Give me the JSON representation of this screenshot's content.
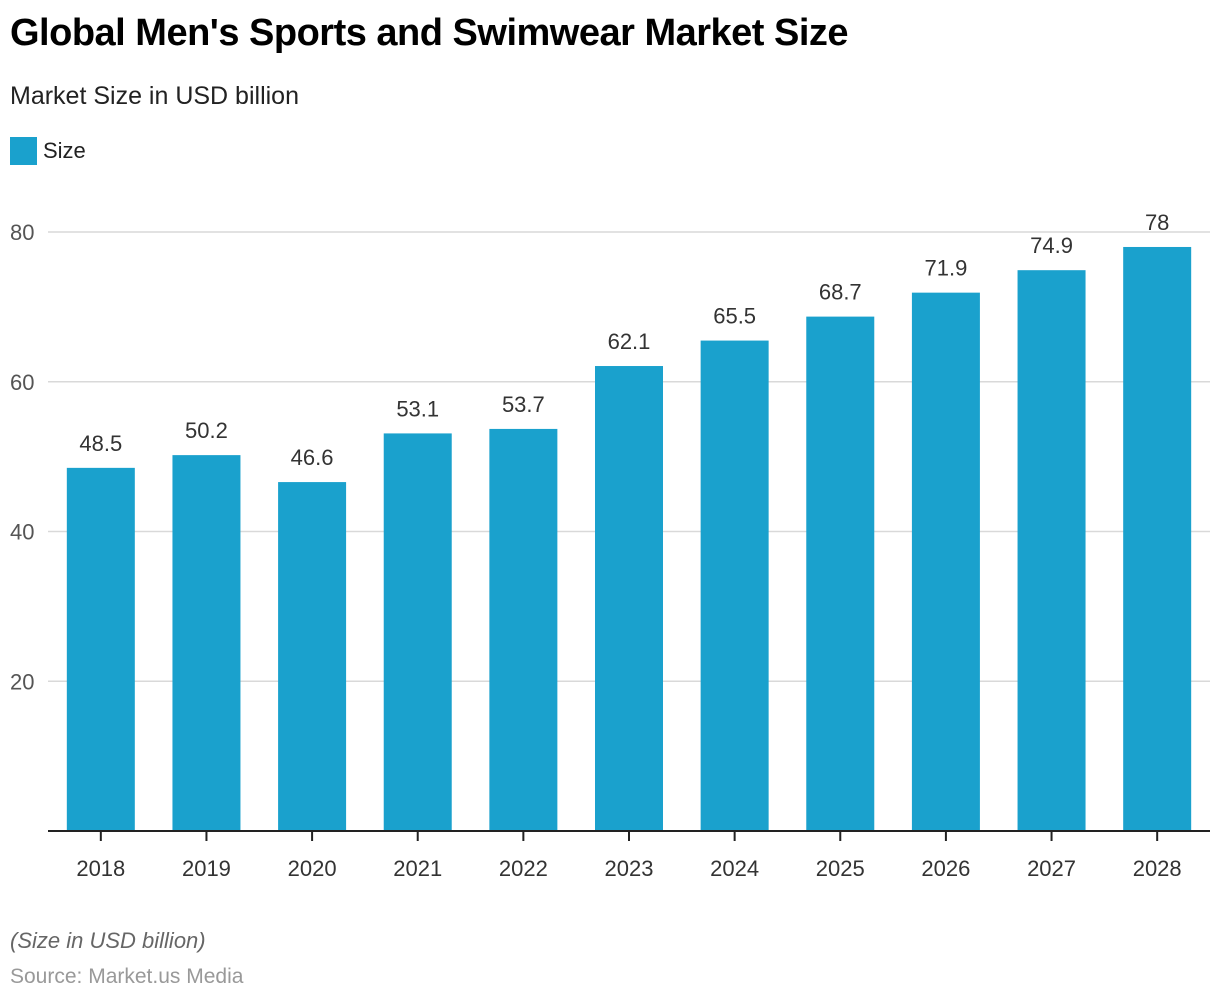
{
  "colors": {
    "bar": "#1aa1cd",
    "grid": "#d9d9d9",
    "axis": "#222222"
  },
  "chart_data": {
    "type": "bar",
    "title": "Global Men's Sports and Swimwear Market Size",
    "subtitle": "Market Size in USD billion",
    "xlabel": "",
    "ylabel": "",
    "categories": [
      "2018",
      "2019",
      "2020",
      "2021",
      "2022",
      "2023",
      "2024",
      "2025",
      "2026",
      "2027",
      "2028"
    ],
    "series": [
      {
        "name": "Size",
        "values": [
          48.5,
          50.2,
          46.6,
          53.1,
          53.7,
          62.1,
          65.5,
          68.7,
          71.9,
          74.9,
          78
        ]
      }
    ],
    "data_labels": [
      "48.5",
      "50.2",
      "46.6",
      "53.1",
      "53.7",
      "62.1",
      "65.5",
      "68.7",
      "71.9",
      "74.9",
      "78"
    ],
    "yticks": [
      20,
      40,
      60,
      80
    ],
    "ylim": [
      0,
      80
    ],
    "grid": true,
    "legend": "top-left",
    "note": "(Size in USD billion)",
    "source": "Source: Market.us Media"
  }
}
